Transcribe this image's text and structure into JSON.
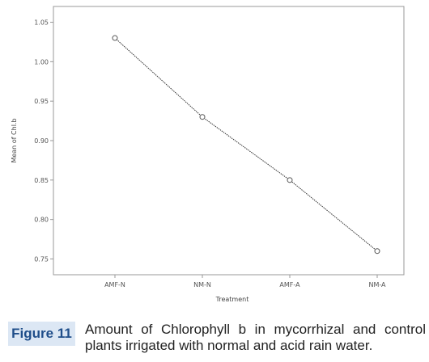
{
  "chart_data": {
    "type": "line",
    "title": "",
    "xlabel": "Treatment",
    "ylabel": "Mean of Chl.b",
    "categories": [
      "AMF-N",
      "NM-N",
      "AMF-A",
      "NM-A"
    ],
    "series": [
      {
        "values": [
          1.03,
          0.93,
          0.85,
          0.76
        ]
      }
    ],
    "yticks": [
      "1.05",
      "1.00",
      "0.95",
      "0.90",
      "0.85",
      "0.80",
      "0.75"
    ],
    "ylim": [
      0.73,
      1.07
    ],
    "grid": false,
    "legend": "none",
    "colors": {
      "line": "#333333",
      "marker": "#555555",
      "plot_border": "#999999"
    }
  },
  "caption": {
    "label": "Figure 11",
    "text": "Amount of Chlorophyll b in mycorrhizal and control plants irrigated with normal and acid rain water."
  }
}
